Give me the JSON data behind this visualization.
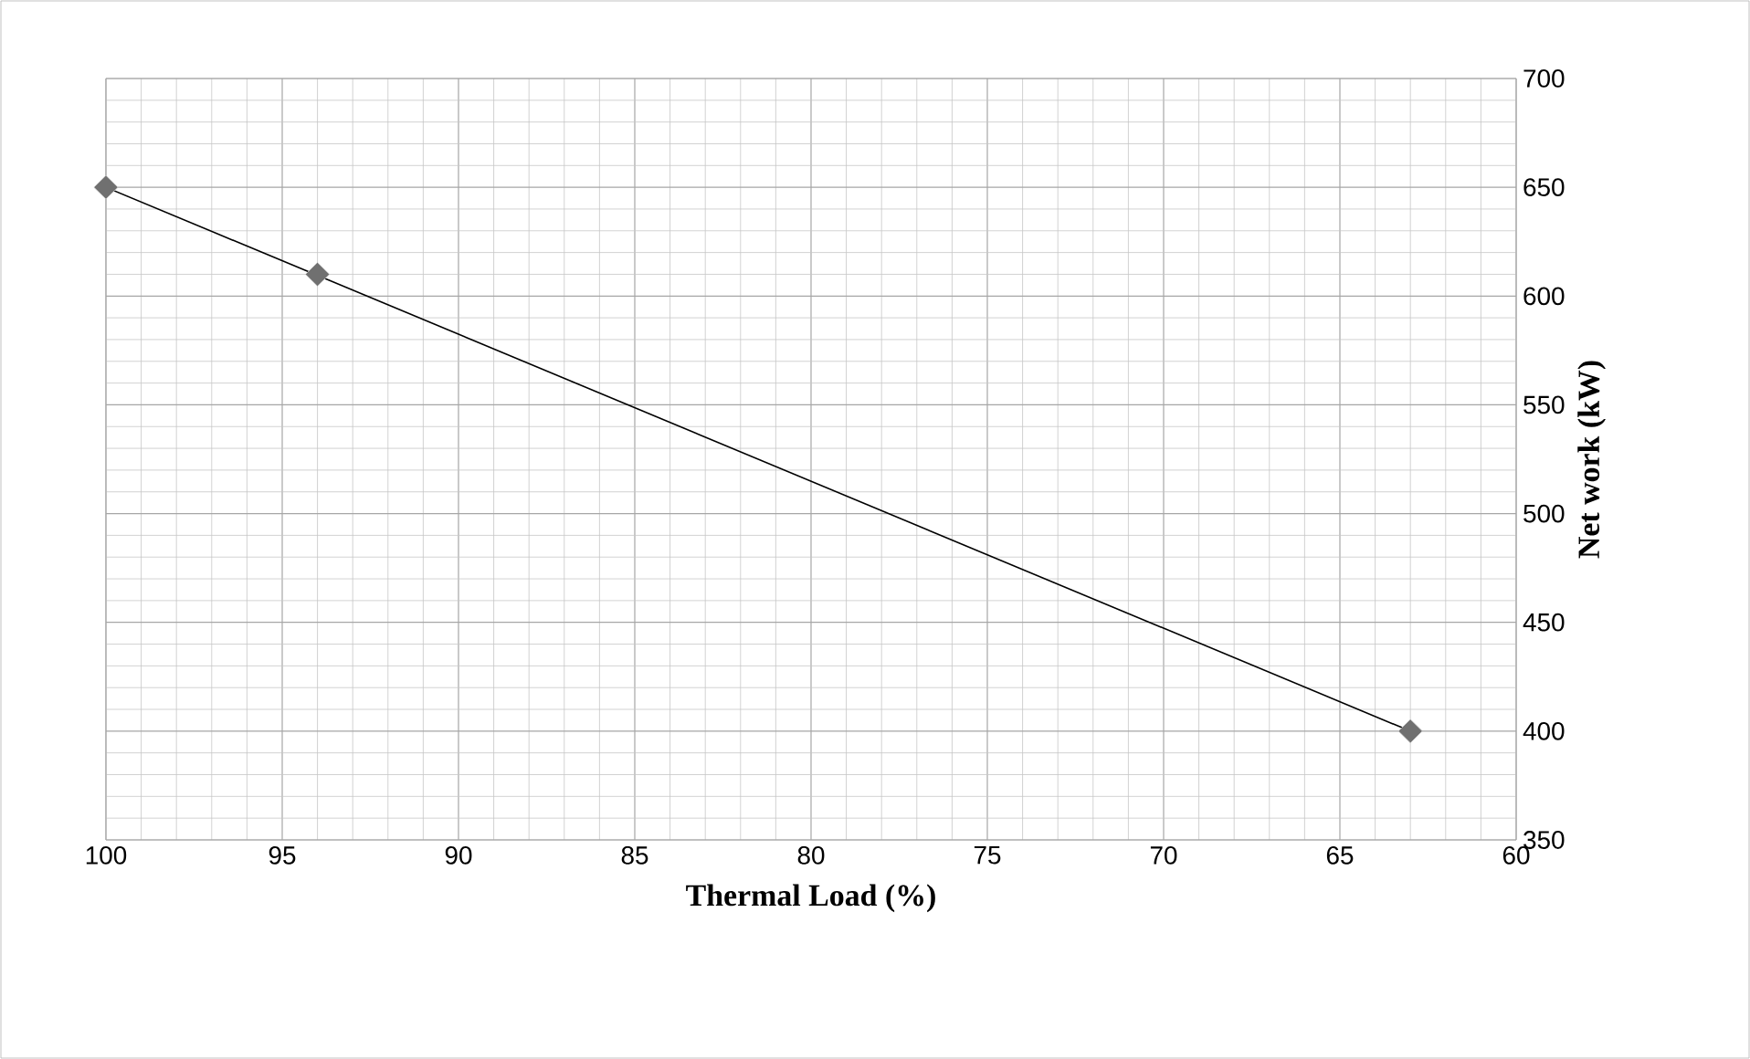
{
  "chart_data": {
    "type": "scatter",
    "xlabel": "Thermal Load (%)",
    "ylabel": "Net work (kW)",
    "x": [
      100,
      94,
      63
    ],
    "series": [
      {
        "color": "#707070",
        "marker": "diamond",
        "values": [
          650,
          610,
          400
        ]
      },
      {
        "type": "line",
        "color": "#000000",
        "marker": "none",
        "x": [
          100,
          63
        ],
        "values": [
          650,
          400
        ]
      }
    ],
    "xlim": [
      100,
      60
    ],
    "xticks": [
      100,
      95,
      90,
      85,
      80,
      75,
      70,
      65,
      60
    ],
    "ylim": [
      350,
      700
    ],
    "yticks": [
      350,
      400,
      450,
      500,
      550,
      600,
      650,
      700
    ],
    "grid": true
  }
}
